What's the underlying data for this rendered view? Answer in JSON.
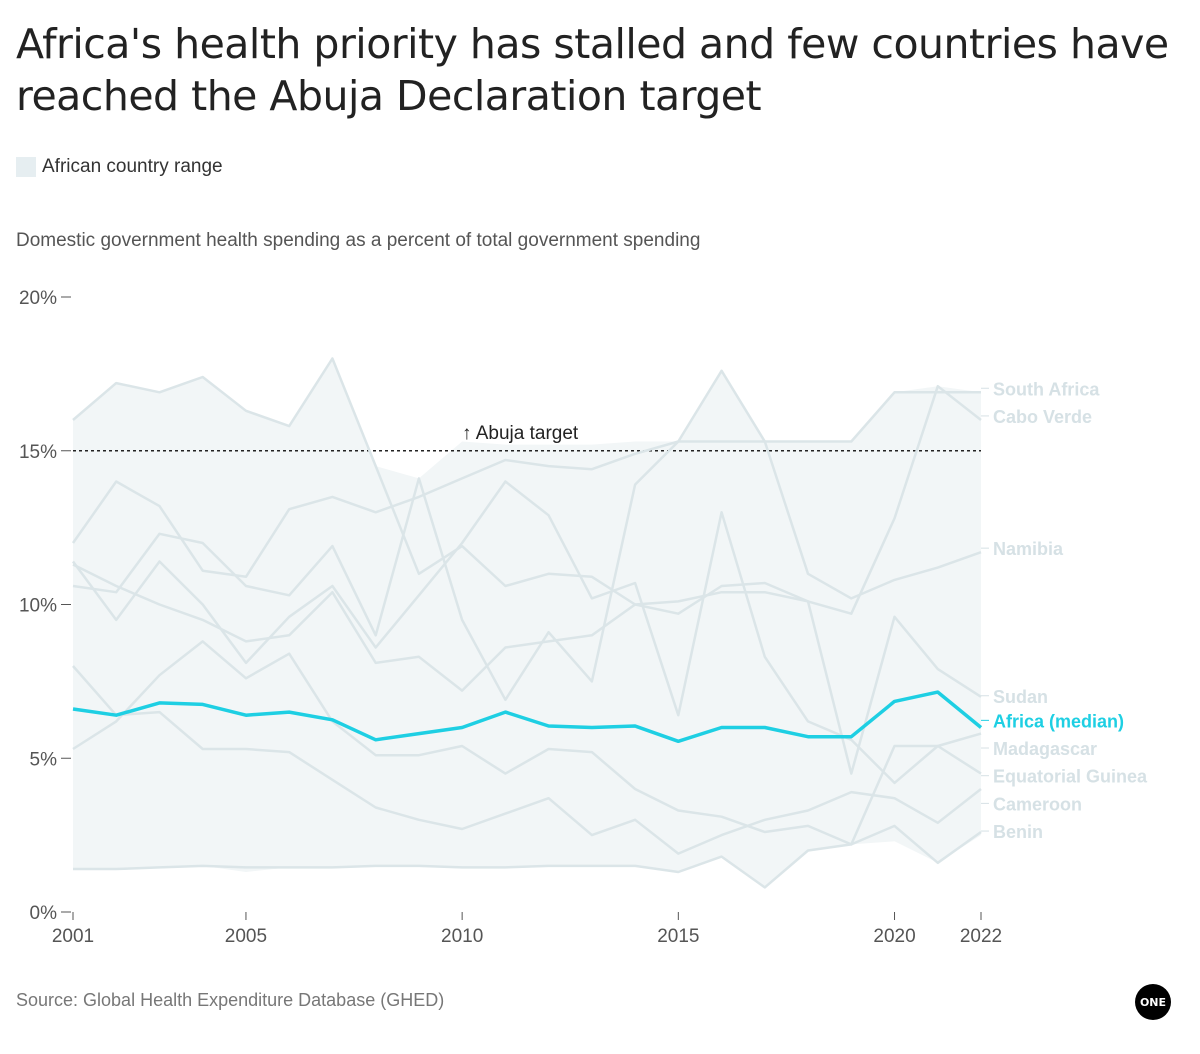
{
  "title": "Africa's health priority has stalled and few countries have reached the Abuja Declaration target",
  "legend": {
    "range_label": "African country range"
  },
  "subtitle": "Domestic government health spending as a percent of total government spending",
  "source": "Source: Global Health Expenditure Database (GHED)",
  "logo": "ONE",
  "colors": {
    "median": "#1ecfe3",
    "country": "#dbe5e8",
    "country_label": "#d6e1e5",
    "range": "#f2f6f7",
    "target": "#222222"
  },
  "chart_data": {
    "type": "line",
    "ylim": [
      0,
      20
    ],
    "xlim": [
      2001,
      2022
    ],
    "y_ticks": [
      {
        "value": 0,
        "label": "0%"
      },
      {
        "value": 5,
        "label": "5%"
      },
      {
        "value": 10,
        "label": "10%"
      },
      {
        "value": 15,
        "label": "15%"
      },
      {
        "value": 20,
        "label": "20%"
      }
    ],
    "x_ticks": [
      {
        "value": 2001,
        "label": "2001"
      },
      {
        "value": 2005,
        "label": "2005"
      },
      {
        "value": 2010,
        "label": "2010"
      },
      {
        "value": 2015,
        "label": "2015"
      },
      {
        "value": 2020,
        "label": "2020"
      },
      {
        "value": 2022,
        "label": "2022"
      }
    ],
    "target": {
      "value": 15,
      "label": "↑ Abuja target"
    },
    "x": [
      2001,
      2002,
      2003,
      2004,
      2005,
      2006,
      2007,
      2008,
      2009,
      2010,
      2011,
      2012,
      2013,
      2014,
      2015,
      2016,
      2017,
      2018,
      2019,
      2020,
      2021,
      2022
    ],
    "range": {
      "label": "African country range",
      "upper": [
        16.0,
        17.2,
        16.9,
        17.4,
        16.3,
        15.8,
        18.0,
        14.5,
        14.1,
        15.3,
        15.2,
        15.2,
        15.2,
        15.3,
        15.3,
        17.6,
        15.3,
        15.3,
        15.3,
        16.9,
        17.1,
        16.9
      ],
      "lower": [
        1.4,
        1.4,
        1.45,
        1.5,
        1.3,
        1.45,
        1.45,
        1.5,
        1.5,
        1.45,
        1.45,
        1.5,
        1.5,
        1.5,
        1.3,
        1.8,
        0.8,
        2.0,
        2.2,
        2.3,
        1.6,
        2.5
      ]
    },
    "median": {
      "name": "Africa (median)",
      "values": [
        6.6,
        6.4,
        6.8,
        6.75,
        6.4,
        6.5,
        6.25,
        5.6,
        5.8,
        6.0,
        6.5,
        6.05,
        6.0,
        6.05,
        5.55,
        6.0,
        6.0,
        5.7,
        5.7,
        6.85,
        7.15,
        6.0
      ]
    },
    "series": [
      {
        "name": "South Africa",
        "values": [
          12.0,
          14.0,
          13.2,
          11.1,
          10.9,
          13.1,
          13.5,
          13.0,
          13.5,
          14.1,
          14.7,
          14.5,
          14.4,
          14.9,
          15.3,
          15.3,
          15.3,
          15.3,
          15.3,
          16.9,
          16.9,
          16.9
        ]
      },
      {
        "name": "Cabo Verde",
        "values": [
          16.0,
          17.2,
          16.9,
          17.4,
          16.3,
          15.8,
          18.0,
          14.5,
          11.0,
          11.9,
          10.6,
          11.0,
          10.9,
          10.0,
          10.1,
          10.4,
          10.4,
          10.1,
          9.7,
          12.8,
          17.1,
          16.0
        ]
      },
      {
        "name": "Namibia",
        "values": [
          10.6,
          10.4,
          12.3,
          12.0,
          10.6,
          10.3,
          11.9,
          9.0,
          14.1,
          9.5,
          6.9,
          9.1,
          7.5,
          13.9,
          15.3,
          17.6,
          15.3,
          11.0,
          10.2,
          10.8,
          11.2,
          11.7
        ]
      },
      {
        "name": "Sudan",
        "values": [
          11.3,
          10.6,
          10.0,
          9.5,
          8.8,
          9.0,
          10.4,
          8.1,
          8.3,
          7.2,
          8.6,
          8.8,
          9.0,
          10.0,
          9.7,
          10.6,
          10.7,
          10.1,
          4.5,
          9.6,
          7.9,
          7.0
        ]
      },
      {
        "name": "Madagascar",
        "values": [
          11.4,
          9.5,
          11.4,
          10.0,
          8.1,
          9.6,
          10.6,
          8.6,
          10.3,
          12.0,
          14.0,
          12.9,
          10.2,
          10.7,
          6.4,
          13.0,
          8.3,
          6.2,
          5.6,
          4.2,
          5.4,
          5.8
        ]
      },
      {
        "name": "Equatorial Guinea",
        "values": [
          5.3,
          6.2,
          7.7,
          8.8,
          7.6,
          8.4,
          6.2,
          5.1,
          5.1,
          5.4,
          4.5,
          5.3,
          5.2,
          4.0,
          3.3,
          3.1,
          2.6,
          2.8,
          2.2,
          5.4,
          5.4,
          4.5
        ]
      },
      {
        "name": "Cameroon",
        "values": [
          8.0,
          6.4,
          6.5,
          5.3,
          5.3,
          5.2,
          4.3,
          3.4,
          3.0,
          2.7,
          3.2,
          3.7,
          2.5,
          3.0,
          1.9,
          2.5,
          3.0,
          3.3,
          3.9,
          3.7,
          2.9,
          4.0
        ]
      },
      {
        "name": "Benin",
        "values": [
          1.4,
          1.4,
          1.45,
          1.5,
          1.45,
          1.45,
          1.45,
          1.5,
          1.5,
          1.45,
          1.45,
          1.5,
          1.5,
          1.5,
          1.3,
          1.8,
          0.8,
          2.0,
          2.2,
          2.8,
          1.6,
          2.6
        ]
      }
    ],
    "end_labels": [
      {
        "name": "South Africa",
        "y": 17.0
      },
      {
        "name": "Cabo Verde",
        "y": 16.1
      },
      {
        "name": "Namibia",
        "y": 11.8
      },
      {
        "name": "Sudan",
        "y": 7.0
      },
      {
        "name": "Africa (median)",
        "y": 6.2,
        "highlight": true
      },
      {
        "name": "Madagascar",
        "y": 5.3
      },
      {
        "name": "Equatorial Guinea",
        "y": 4.4
      },
      {
        "name": "Cameroon",
        "y": 3.5
      },
      {
        "name": "Benin",
        "y": 2.6
      }
    ]
  }
}
